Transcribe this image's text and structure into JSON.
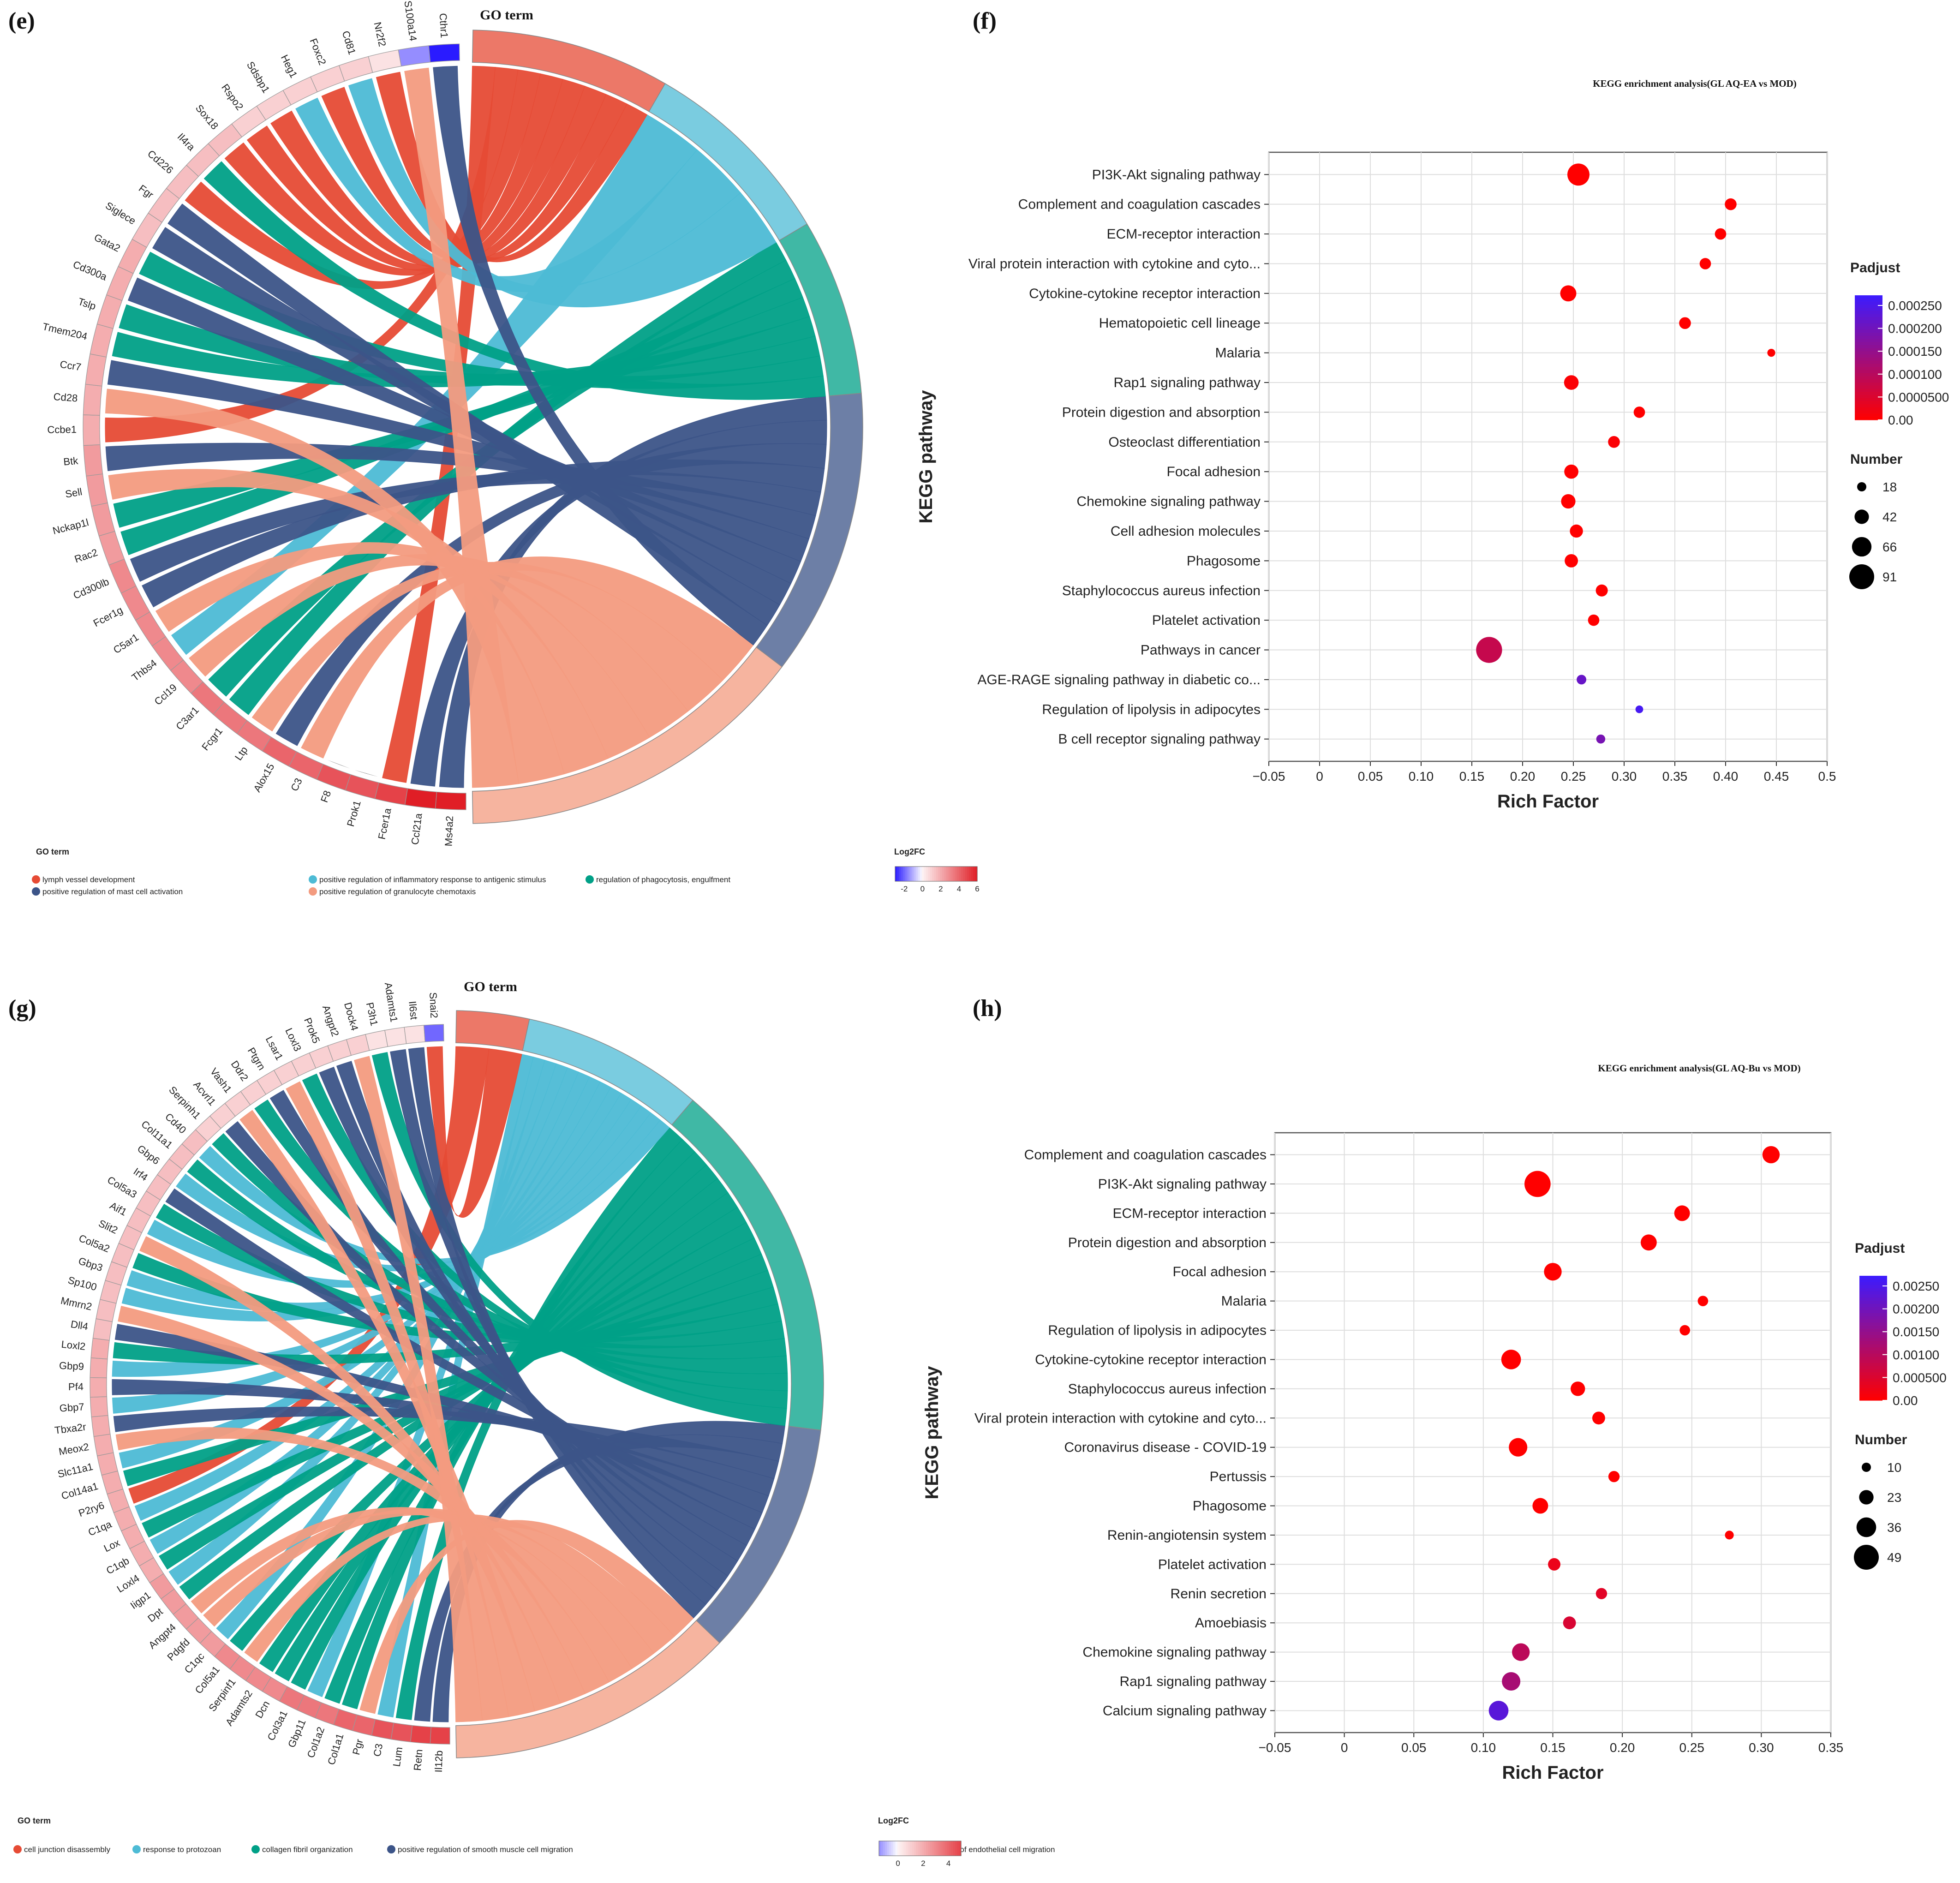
{
  "panels": {
    "e_label": "(e)",
    "f_label": "(f)",
    "g_label": "(g)",
    "h_label": "(h)"
  },
  "colors": {
    "term1": "#e64b35",
    "term2": "#4dbbd5",
    "term3": "#00a087",
    "term4": "#3c5488",
    "term5": "#f39b7f",
    "padj_low": "#ff0000",
    "padj_high": "#3c1bff",
    "fc_low": "#2a1bff",
    "fc_mid": "#ffffff",
    "fc_high": "#e01e26"
  },
  "chart_data": [
    {
      "type": "chord",
      "panel": "e",
      "title": "GO term",
      "genes": [
        "Ms4a2",
        "Ccl21a",
        "Fcer1a",
        "Prok1",
        "F8",
        "C3",
        "Alox15",
        "Ltp",
        "Fcgr1",
        "C3ar1",
        "Ccl19",
        "Thbs4",
        "C5ar1",
        "Fcer1g",
        "Cd300lb",
        "Rac2",
        "Nckap1l",
        "Sell",
        "Btk",
        "Ccbe1",
        "Cd28",
        "Ccr7",
        "Tmem204",
        "Tslp",
        "Cd300a",
        "Gata2",
        "Siglece",
        "Fgr",
        "Cd226",
        "Il4ra",
        "Sox18",
        "Rspo2",
        "Sdsbp1",
        "Heg1",
        "Foxc2",
        "Cd81",
        "Nr2f2",
        "S100a14",
        "Cthr1"
      ],
      "gene_log2fc": [
        6,
        6,
        5,
        4.5,
        4.5,
        4,
        4,
        3.5,
        3.5,
        3.5,
        3,
        3,
        3,
        3,
        3,
        2.5,
        2.5,
        2.5,
        2.5,
        2,
        2,
        2,
        2,
        2,
        2,
        2,
        1.5,
        1.5,
        1.5,
        1.5,
        1.5,
        1,
        1,
        1,
        1,
        1,
        0.5,
        -1.5,
        -3
      ],
      "terms": [
        "lymph vessel development",
        "positive regulation of inflammatory response to antigenic stimulus",
        "regulation of phagocytosis, engulfment",
        "positive regulation of mast cell activation",
        "positive regulation of granulocyte chemotaxis"
      ],
      "term_weights": [
        9,
        9,
        8,
        13,
        16
      ],
      "gene_terms": [
        4,
        4,
        1,
        0,
        0,
        5,
        4,
        5,
        3,
        3,
        5,
        2,
        5,
        4,
        4,
        3,
        3,
        5,
        4,
        1,
        5,
        4,
        3,
        3,
        4,
        3,
        4,
        4,
        1,
        3,
        1,
        1,
        1,
        2,
        1,
        2,
        1,
        5,
        4
      ],
      "legend_title": "GO term",
      "fc_legend_title": "Log2FC",
      "fc_ticks": [
        "-2",
        "0",
        "2",
        "4",
        "6"
      ]
    },
    {
      "type": "scatter",
      "panel": "f",
      "title": "KEGG enrichment analysis(GL AQ-EA vs MOD)",
      "xlabel": "Rich Factor",
      "ylabel": "KEGG pathway",
      "xlim": [
        -0.05,
        0.5
      ],
      "xticks": [
        "-0.05",
        "0",
        "0.05",
        "0.10",
        "0.15",
        "0.20",
        "0.25",
        "0.30",
        "0.35",
        "0.40",
        "0.45",
        "0.5"
      ],
      "categories": [
        "PI3K-Akt signaling pathway",
        "Complement and coagulation cascades",
        "ECM-receptor interaction",
        "Viral protein interaction with cytokine and cyto...",
        "Cytokine-cytokine receptor interaction",
        "Hematopoietic cell lineage",
        "Malaria",
        "Rap1 signaling pathway",
        "Protein digestion and absorption",
        "Osteoclast differentiation",
        "Focal adhesion",
        "Chemokine signaling pathway",
        "Cell adhesion molecules",
        "Phagosome",
        "Staphylococcus aureus infection",
        "Platelet activation",
        "Pathways in cancer",
        "AGE-RAGE signaling pathway in diabetic co...",
        "Regulation of lipolysis in adipocytes",
        "B cell receptor signaling pathway"
      ],
      "rich_factor": [
        0.255,
        0.405,
        0.395,
        0.38,
        0.245,
        0.36,
        0.445,
        0.248,
        0.315,
        0.29,
        0.248,
        0.245,
        0.253,
        0.248,
        0.278,
        0.27,
        0.167,
        0.258,
        0.315,
        0.277
      ],
      "padjust_frac": [
        0,
        0,
        0,
        0,
        0,
        0,
        0,
        0.02,
        0,
        0.02,
        0,
        0,
        0,
        0,
        0,
        0,
        0.3,
        0.78,
        0.95,
        0.7
      ],
      "number": [
        78,
        30,
        28,
        28,
        50,
        30,
        12,
        43,
        28,
        30,
        41,
        42,
        36,
        37,
        31,
        28,
        96,
        20,
        11,
        17
      ],
      "padjust_legend": {
        "title": "Padjust",
        "labels": [
          "0.000250",
          "0.000200",
          "0.000150",
          "0.000100",
          "0.0000500",
          "0.00"
        ]
      },
      "number_legend": {
        "title": "Number",
        "labels": [
          "18",
          "42",
          "66",
          "91"
        ],
        "values": [
          18,
          42,
          66,
          91
        ]
      },
      "size_range": [
        18,
        91
      ]
    },
    {
      "type": "chord",
      "panel": "g",
      "title": "GO term",
      "genes": [
        "Il12b",
        "Retn",
        "Lum",
        "C3",
        "Pgr",
        "Col1a1",
        "Col1a2",
        "Gbp11",
        "Col3a1",
        "Dcn",
        "Adamts2",
        "Serpinf1",
        "Col5a1",
        "C1qc",
        "Pdgfd",
        "Angpt4",
        "Dpt",
        "Iigp1",
        "Loxl4",
        "C1qb",
        "Lox",
        "C1qa",
        "P2ry6",
        "Col14a1",
        "Slc11a1",
        "Meox2",
        "Tbxa2r",
        "Gbp7",
        "Pf4",
        "Gbp9",
        "Loxl2",
        "Dll4",
        "Mmrn2",
        "Sp100",
        "Gbp3",
        "Col5a2",
        "Slit2",
        "Aif1",
        "Col5a3",
        "Irf4",
        "Gbp6",
        "Col11a1",
        "Cd40",
        "Serpinh1",
        "Acvrl1",
        "Vash1",
        "Ddr2",
        "Ptgrn",
        "Lsar1",
        "Loxl3",
        "Prok5",
        "Angpt2",
        "Dock4",
        "P3h1",
        "Adamts1",
        "Il6st",
        "Snai2"
      ],
      "gene_log2fc": [
        5,
        5,
        4.5,
        4.5,
        4,
        4,
        3.5,
        3.5,
        3.5,
        3,
        3,
        3,
        3,
        2.5,
        2.5,
        2.5,
        2.5,
        2.5,
        2,
        2,
        2,
        2,
        2,
        2,
        2,
        2,
        2,
        2,
        2,
        2,
        2,
        1.5,
        1.5,
        1.5,
        1.5,
        1.5,
        1.5,
        1.5,
        1.5,
        1.5,
        1.5,
        1.5,
        1.5,
        1,
        1,
        1,
        1,
        1,
        1,
        1,
        1,
        1,
        1,
        0.5,
        0.5,
        0.5,
        -2
      ],
      "terms": [
        "cell junction disassembly",
        "response to protozoan",
        "collagen fibril organization",
        "positive regulation of smooth muscle cell migration",
        "negative regulation of endothelial cell migration"
      ],
      "term_weights": [
        4,
        10,
        20,
        13,
        16
      ],
      "gene_terms": [
        4,
        4,
        3,
        2,
        5,
        3,
        3,
        2,
        3,
        3,
        3,
        5,
        3,
        2,
        5,
        5,
        3,
        2,
        3,
        2,
        3,
        2,
        1,
        3,
        2,
        5,
        4,
        2,
        4,
        2,
        3,
        4,
        5,
        2,
        2,
        3,
        5,
        2,
        3,
        4,
        2,
        3,
        2,
        3,
        4,
        5,
        3,
        4,
        5,
        3,
        4,
        4,
        5,
        3,
        4,
        4,
        1
      ],
      "legend_title": "GO term",
      "fc_legend_title": "Log2FC",
      "fc_ticks": [
        "0",
        "2",
        "4"
      ]
    },
    {
      "type": "scatter",
      "panel": "h",
      "title": "KEGG enrichment analysis(GL AQ-Bu vs MOD)",
      "xlabel": "Rich Factor",
      "ylabel": "KEGG pathway",
      "xlim": [
        -0.05,
        0.35
      ],
      "xticks": [
        "-0.05",
        "0",
        "0.05",
        "0.10",
        "0.15",
        "0.20",
        "0.25",
        "0.30",
        "0.35"
      ],
      "categories": [
        "Complement and coagulation cascades",
        "PI3K-Akt signaling pathway",
        "ECM-receptor interaction",
        "Protein digestion and absorption",
        "Focal adhesion",
        "Malaria",
        "Regulation of lipolysis in adipocytes",
        "Cytokine-cytokine receptor interaction",
        "Staphylococcus aureus infection",
        "Viral protein interaction with cytokine and cyto...",
        "Coronavirus disease - COVID-19",
        "Pertussis",
        "Phagosome",
        "Renin-angiotensin system",
        "Platelet activation",
        "Renin secretion",
        "Amoebiasis",
        "Chemokine signaling pathway",
        "Rap1 signaling pathway",
        "Calcium signaling pathway"
      ],
      "rich_factor": [
        0.307,
        0.139,
        0.243,
        0.219,
        0.15,
        0.258,
        0.245,
        0.12,
        0.168,
        0.183,
        0.125,
        0.194,
        0.141,
        0.277,
        0.151,
        0.185,
        0.162,
        0.127,
        0.12,
        0.111
      ],
      "padjust_frac": [
        0,
        0,
        0,
        0,
        0,
        0,
        0,
        0,
        0,
        0,
        0,
        0,
        0,
        0,
        0.1,
        0.15,
        0.2,
        0.35,
        0.45,
        0.85
      ],
      "number": [
        30,
        52,
        26,
        27,
        31,
        13,
        13,
        36,
        23,
        19,
        33,
        15,
        26,
        9,
        18,
        15,
        19,
        31,
        33,
        36
      ],
      "padjust_legend": {
        "title": "Padjust",
        "labels": [
          "0.00250",
          "0.00200",
          "0.00150",
          "0.00100",
          "0.000500",
          "0.00"
        ]
      },
      "number_legend": {
        "title": "Number",
        "labels": [
          "10",
          "23",
          "36",
          "49"
        ],
        "values": [
          10,
          23,
          36,
          49
        ]
      },
      "size_range": [
        10,
        49
      ]
    }
  ]
}
